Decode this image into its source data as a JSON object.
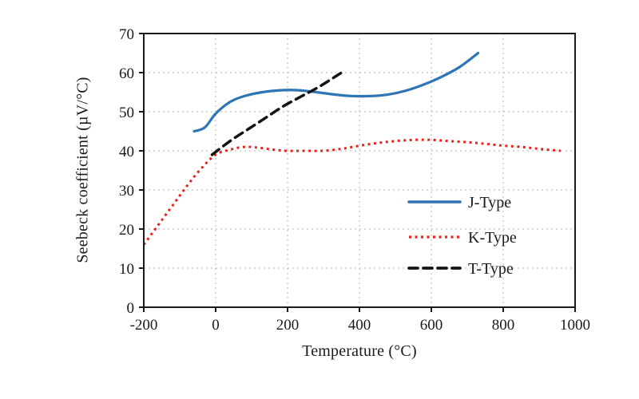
{
  "chart_data": {
    "type": "line",
    "title": "",
    "xlabel": "Temperature (°C)",
    "ylabel": "Seebeck coefficient (µV/°C)",
    "xlim": [
      -200,
      1000
    ],
    "ylim": [
      0,
      70
    ],
    "xticks": [
      -200,
      0,
      200,
      400,
      600,
      800,
      1000
    ],
    "yticks": [
      0,
      10,
      20,
      30,
      40,
      50,
      60,
      70
    ],
    "grid": "dotted",
    "grid_color": "#b3b3b3",
    "axis_color": "#1a1a1a",
    "legend_position": "center-right",
    "series": [
      {
        "name": "J-Type",
        "color": "#2e75b6",
        "style": "solid",
        "width": 3.2,
        "points": [
          [
            -60,
            45
          ],
          [
            -30,
            46
          ],
          [
            0,
            49.5
          ],
          [
            40,
            52.5
          ],
          [
            80,
            54
          ],
          [
            130,
            55
          ],
          [
            180,
            55.5
          ],
          [
            230,
            55.5
          ],
          [
            280,
            55
          ],
          [
            330,
            54.4
          ],
          [
            380,
            54
          ],
          [
            430,
            54
          ],
          [
            480,
            54.4
          ],
          [
            530,
            55.4
          ],
          [
            580,
            57
          ],
          [
            630,
            59
          ],
          [
            680,
            61.5
          ],
          [
            730,
            65
          ]
        ]
      },
      {
        "name": "K-Type",
        "color": "#e8231a",
        "style": "dotted",
        "width": 3,
        "points": [
          [
            -200,
            16
          ],
          [
            -160,
            21
          ],
          [
            -120,
            26
          ],
          [
            -80,
            31
          ],
          [
            -40,
            35.5
          ],
          [
            0,
            39
          ],
          [
            40,
            40.3
          ],
          [
            80,
            41
          ],
          [
            120,
            40.8
          ],
          [
            160,
            40.3
          ],
          [
            200,
            40
          ],
          [
            250,
            40
          ],
          [
            300,
            40
          ],
          [
            350,
            40.5
          ],
          [
            400,
            41.3
          ],
          [
            450,
            42
          ],
          [
            500,
            42.5
          ],
          [
            550,
            42.8
          ],
          [
            600,
            42.8
          ],
          [
            650,
            42.5
          ],
          [
            700,
            42.2
          ],
          [
            750,
            41.8
          ],
          [
            800,
            41.3
          ],
          [
            850,
            41
          ],
          [
            900,
            40.5
          ],
          [
            960,
            40
          ]
        ]
      },
      {
        "name": "T-Type",
        "color": "#141414",
        "style": "dashed",
        "width": 3.5,
        "points": [
          [
            -10,
            39
          ],
          [
            40,
            42.5
          ],
          [
            90,
            45.5
          ],
          [
            140,
            48.5
          ],
          [
            190,
            51.5
          ],
          [
            240,
            54
          ],
          [
            290,
            56.5
          ],
          [
            350,
            60
          ]
        ]
      }
    ]
  }
}
